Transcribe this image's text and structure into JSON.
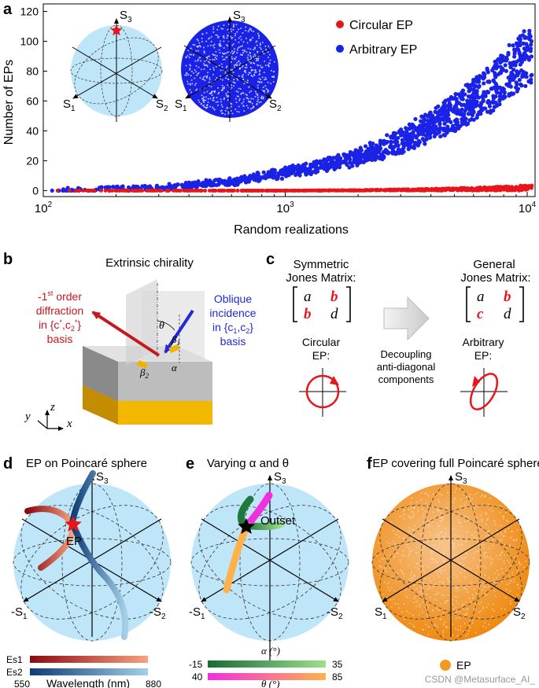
{
  "panels": {
    "a": "a",
    "b": "b",
    "c": "c",
    "d": "d",
    "e": "e",
    "f": "f"
  },
  "panel_a": {
    "stokes": {
      "s1": "S",
      "s1_sub": "1",
      "s2": "S",
      "s2_sub": "2",
      "s3": "S",
      "s3_sub": "3"
    },
    "legend": {
      "circular": "Circular EP",
      "arbitrary": "Arbitrary EP"
    },
    "colors": {
      "circular": "#e8151b",
      "arbitrary": "#1a22e6",
      "sphere_fill": "#bfe6f8"
    }
  },
  "chart_data": {
    "type": "scatter",
    "title": "",
    "xlabel": "Random realizations",
    "ylabel": "Number of EPs",
    "xscale": "log",
    "xlim": [
      100,
      10000
    ],
    "ylim": [
      -4,
      125
    ],
    "x_ticks": [
      100,
      1000,
      10000
    ],
    "x_tick_labels": [
      {
        "base": "10",
        "exp": "2"
      },
      {
        "base": "10",
        "exp": "3"
      },
      {
        "base": "10",
        "exp": "4"
      }
    ],
    "y_ticks": [
      0,
      20,
      40,
      60,
      80,
      100,
      120
    ],
    "series": [
      {
        "name": "Circular EP",
        "color": "#e8151b",
        "trend": "≈0 for N<2000, rising to ≈3 at N=10^4",
        "sample_points": [
          [
            100,
            0
          ],
          [
            300,
            0
          ],
          [
            1000,
            0
          ],
          [
            2000,
            0.3
          ],
          [
            4000,
            1
          ],
          [
            7000,
            2
          ],
          [
            10000,
            3
          ]
        ]
      },
      {
        "name": "Arbitrary EP",
        "color": "#1a22e6",
        "trend": "≈0 at N=100, ≈12 at N=1000, ≈35 at N=3000, ≈90 at N=10^4",
        "sample_points": [
          [
            100,
            0
          ],
          [
            300,
            2
          ],
          [
            600,
            6
          ],
          [
            1000,
            12
          ],
          [
            2000,
            22
          ],
          [
            3000,
            33
          ],
          [
            5000,
            52
          ],
          [
            7000,
            68
          ],
          [
            10000,
            90
          ]
        ]
      }
    ]
  },
  "panel_b": {
    "title": "Extrinsic chirality",
    "diffraction": {
      "l1": "-1",
      "l1_sup": "st",
      "l1_rest": " order",
      "l2": "diffraction",
      "l3": "in {c",
      "l4": "basis"
    },
    "oblique": {
      "l1": "Oblique",
      "l2": "incidence",
      "l3": "in {c",
      "l4": "basis"
    },
    "angles": {
      "theta": "θ",
      "beta1": "β",
      "beta2": "β",
      "alpha": "α"
    },
    "axes": {
      "x": "x",
      "y": "y",
      "z": "z"
    },
    "colors": {
      "red_arrow": "#c8161d",
      "blue_arrow": "#1f2ad6",
      "gold": "#f0b400"
    }
  },
  "panel_c": {
    "sym_title1": "Symmetric",
    "sym_title2": "Jones Matrix:",
    "gen_title1": "General",
    "gen_title2": "Jones Matrix:",
    "sym_matrix": [
      "a",
      "b",
      "b",
      "d"
    ],
    "gen_matrix": [
      "a",
      "b",
      "c",
      "d"
    ],
    "circ_ep1": "Circular",
    "circ_ep2": "EP:",
    "arb_ep1": "Arbitrary",
    "arb_ep2": "EP:",
    "arrow_text": [
      "Decoupling",
      "anti-diagonal",
      "components"
    ]
  },
  "panel_d": {
    "title": "EP on Poincaré sphere",
    "ep_label": "EP",
    "s1": "-S",
    "s2": "-S",
    "s3": "S",
    "cb": {
      "es1": "Es1",
      "es2": "Es2",
      "min": "550",
      "max": "880",
      "label": "Wavelength (nm)"
    }
  },
  "panel_e": {
    "title": "Varying α and θ",
    "outset": "Outset",
    "s1": "-S",
    "s2": "-S",
    "s3": "S",
    "cb_alpha": {
      "label": "α (°)",
      "min": "-15",
      "max": "35"
    },
    "cb_theta": {
      "label": "θ (°)",
      "min": "40",
      "max": "85"
    }
  },
  "panel_f": {
    "title": "EP covering full Poincaré sphere",
    "s1": "S",
    "s2": "S",
    "s3": "S",
    "legend": "EP",
    "color": "#f39a1c"
  },
  "watermark": "CSDN @Metasurface_AI_"
}
